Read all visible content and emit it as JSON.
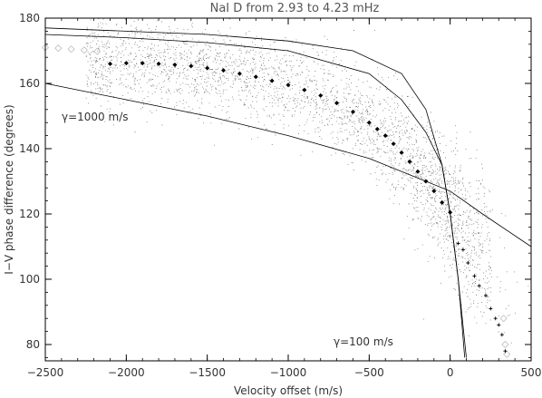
{
  "chart_data": {
    "type": "scatter",
    "title": "NaI D from 2.93 to 4.23 mHz",
    "xlabel": "Velocity offset (m/s)",
    "ylabel": "I−V phase difference (degrees)",
    "xlim": [
      -2500,
      500
    ],
    "ylim": [
      75,
      180
    ],
    "x_ticks": [
      -2500,
      -2000,
      -1500,
      -1000,
      -500,
      0,
      500
    ],
    "y_ticks": [
      80,
      100,
      120,
      140,
      160,
      180
    ],
    "x_tick_labels": [
      "−2500",
      "−2000",
      "−1500",
      "−1000",
      "−500",
      "0",
      "500"
    ],
    "y_tick_labels": [
      "80",
      "100",
      "120",
      "140",
      "160",
      "180"
    ],
    "grid": false,
    "colors": {
      "scatter": "#808080",
      "binned_mean": "#000000",
      "sparse_bins": "#c8c8c8",
      "model_curve": "#000000"
    },
    "annotations": [
      {
        "text": "γ=1000 m/s",
        "x": -2450,
        "y": 150
      },
      {
        "text": "γ=100 m/s",
        "x": -300,
        "y": 79
      }
    ],
    "series": [
      {
        "kind": "binned_mean",
        "x": [
          -2100,
          -2000,
          -1900,
          -1800,
          -1700,
          -1600,
          -1500,
          -1400,
          -1300,
          -1200,
          -1100,
          -1000,
          -900,
          -800,
          -700,
          -600,
          -500,
          -450,
          -400,
          -350,
          -300,
          -250,
          -200,
          -150,
          -100,
          -50,
          0
        ],
        "y": [
          166,
          166.2,
          166.2,
          166,
          165.7,
          165.3,
          164.7,
          164,
          163,
          162,
          160.8,
          159.5,
          158,
          156.3,
          154,
          151.3,
          148,
          146,
          144,
          141.5,
          138.8,
          136,
          133,
          130,
          127,
          123.5,
          120.5
        ]
      },
      {
        "kind": "sparse_bins",
        "x": [
          -2500,
          -2420,
          -2340,
          -2260,
          -2180,
          330,
          340,
          350
        ],
        "y": [
          171,
          170.8,
          170.5,
          170.2,
          169.8,
          88,
          80,
          77
        ]
      },
      {
        "kind": "sparse_plus",
        "x": [
          50,
          80,
          110,
          150,
          180,
          220,
          250,
          280,
          300,
          320,
          340
        ],
        "y": [
          111,
          109,
          105,
          101,
          98,
          95,
          91,
          88,
          86,
          83,
          78
        ]
      }
    ],
    "model_curves": [
      {
        "gamma": "1000 m/s",
        "kind": "upper",
        "x": [
          -2500,
          -2000,
          -1500,
          -1000,
          -600,
          -300,
          -150,
          -50,
          0,
          50,
          100
        ],
        "y": [
          177,
          176,
          175,
          173,
          170,
          163,
          152,
          135,
          120,
          100,
          76
        ]
      },
      {
        "gamma": "1000 m/s",
        "kind": "lower",
        "x": [
          -2500,
          -2000,
          -1500,
          -1000,
          -500,
          -200,
          0,
          200,
          500
        ],
        "y": [
          160,
          155,
          150,
          144,
          137,
          131,
          127,
          120,
          110
        ]
      },
      {
        "gamma": "100 m/s",
        "kind": "steep",
        "x": [
          -2500,
          -2000,
          -1500,
          -1000,
          -500,
          -300,
          -150,
          -50,
          0,
          50,
          90
        ],
        "y": [
          175,
          174,
          172.5,
          170,
          163,
          155,
          145,
          135,
          120,
          100,
          76
        ]
      }
    ]
  }
}
